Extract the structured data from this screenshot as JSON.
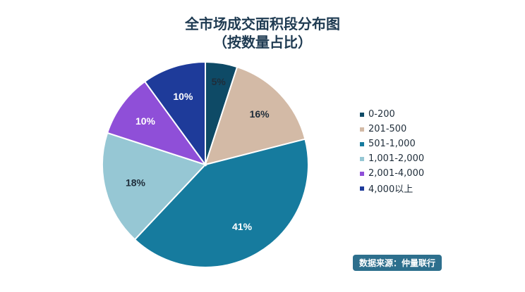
{
  "chart_data": {
    "type": "pie",
    "title": "全市场成交面积段分布图",
    "subtitle": "（按数量占比）",
    "legend_position": "right",
    "slices": [
      {
        "label": "0-200",
        "value": 5,
        "value_label": "5%",
        "color": "#0e4a66"
      },
      {
        "label": "201-500",
        "value": 16,
        "value_label": "16%",
        "color": "#d3baa6"
      },
      {
        "label": "501-1,000",
        "value": 41,
        "value_label": "41%",
        "color": "#167b9e"
      },
      {
        "label": "1,001-2,000",
        "value": 18,
        "value_label": "18%",
        "color": "#96c7d4"
      },
      {
        "label": "2,001-4,000",
        "value": 10,
        "value_label": "10%",
        "color": "#8f4fd8"
      },
      {
        "label": "4,000以上",
        "value": 10,
        "value_label": "10%",
        "color": "#1e3b9a"
      }
    ]
  },
  "source_label": "数据来源：仲量联行"
}
